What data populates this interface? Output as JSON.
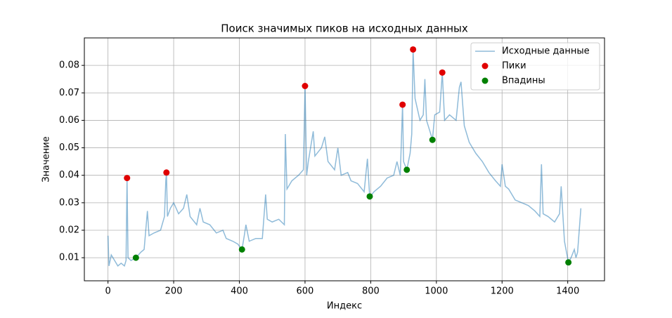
{
  "chart_data": {
    "type": "line",
    "title": "Поиск значимых пиков на исходных данных",
    "xlabel": "Индекс",
    "ylabel": "Значение",
    "xlim": [
      -72,
      1512
    ],
    "xticks": [
      0,
      200,
      400,
      600,
      800,
      1000,
      1200,
      1400
    ],
    "ylim": [
      0.0016,
      0.09
    ],
    "yticks": [
      0.01,
      0.02,
      0.03,
      0.04,
      0.05,
      0.06,
      0.07,
      0.08
    ],
    "grid": true,
    "legend": "upper right",
    "series": [
      {
        "name": "Исходные данные",
        "type": "line",
        "color": "#1f77b4",
        "alpha": 0.5,
        "x": [
          0,
          3,
          10,
          20,
          30,
          40,
          50,
          55,
          58,
          61,
          70,
          85,
          100,
          110,
          120,
          125,
          140,
          160,
          172,
          176,
          178,
          181,
          190,
          200,
          215,
          230,
          240,
          250,
          270,
          280,
          290,
          310,
          330,
          350,
          360,
          380,
          395,
          408,
          415,
          420,
          430,
          450,
          470,
          480,
          485,
          500,
          520,
          537,
          540,
          545,
          560,
          580,
          595,
          600,
          605,
          610,
          625,
          630,
          650,
          660,
          670,
          690,
          700,
          710,
          730,
          740,
          760,
          780,
          790,
          797,
          810,
          830,
          850,
          870,
          880,
          890,
          897,
          900,
          910,
          920,
          925,
          929,
          935,
          950,
          960,
          965,
          970,
          988,
          995,
          1010,
          1018,
          1025,
          1040,
          1060,
          1070,
          1075,
          1085,
          1100,
          1120,
          1140,
          1160,
          1180,
          1195,
          1200,
          1210,
          1220,
          1240,
          1260,
          1280,
          1300,
          1315,
          1320,
          1325,
          1340,
          1360,
          1375,
          1380,
          1390,
          1402,
          1410,
          1420,
          1425,
          1430,
          1440
        ],
        "values": [
          0.018,
          0.007,
          0.011,
          0.009,
          0.007,
          0.008,
          0.007,
          0.009,
          0.039,
          0.01,
          0.009,
          0.01,
          0.012,
          0.013,
          0.027,
          0.018,
          0.019,
          0.02,
          0.025,
          0.038,
          0.041,
          0.025,
          0.028,
          0.03,
          0.026,
          0.028,
          0.033,
          0.025,
          0.022,
          0.028,
          0.023,
          0.022,
          0.019,
          0.02,
          0.017,
          0.016,
          0.015,
          0.013,
          0.018,
          0.022,
          0.016,
          0.017,
          0.017,
          0.033,
          0.024,
          0.023,
          0.024,
          0.022,
          0.055,
          0.035,
          0.038,
          0.04,
          0.042,
          0.0725,
          0.04,
          0.045,
          0.056,
          0.047,
          0.05,
          0.054,
          0.045,
          0.042,
          0.05,
          0.04,
          0.041,
          0.038,
          0.037,
          0.034,
          0.046,
          0.032,
          0.034,
          0.036,
          0.039,
          0.04,
          0.045,
          0.04,
          0.0657,
          0.045,
          0.042,
          0.048,
          0.055,
          0.0858,
          0.068,
          0.06,
          0.062,
          0.075,
          0.06,
          0.053,
          0.062,
          0.063,
          0.0774,
          0.06,
          0.062,
          0.06,
          0.072,
          0.074,
          0.058,
          0.052,
          0.048,
          0.045,
          0.041,
          0.038,
          0.036,
          0.044,
          0.036,
          0.035,
          0.031,
          0.03,
          0.029,
          0.027,
          0.025,
          0.044,
          0.026,
          0.025,
          0.023,
          0.026,
          0.036,
          0.016,
          0.0083,
          0.01,
          0.013,
          0.01,
          0.012,
          0.028
        ]
      },
      {
        "name": "Пики",
        "type": "scatter",
        "color": "#e00000",
        "x": [
          58,
          178,
          600,
          897,
          929,
          1018
        ],
        "values": [
          0.039,
          0.041,
          0.0725,
          0.0657,
          0.0858,
          0.0774
        ]
      },
      {
        "name": "Впадины",
        "type": "scatter",
        "color": "#008000",
        "x": [
          85,
          408,
          797,
          910,
          988,
          1402
        ],
        "values": [
          0.01,
          0.013,
          0.0323,
          0.042,
          0.0529,
          0.0083
        ]
      }
    ]
  }
}
